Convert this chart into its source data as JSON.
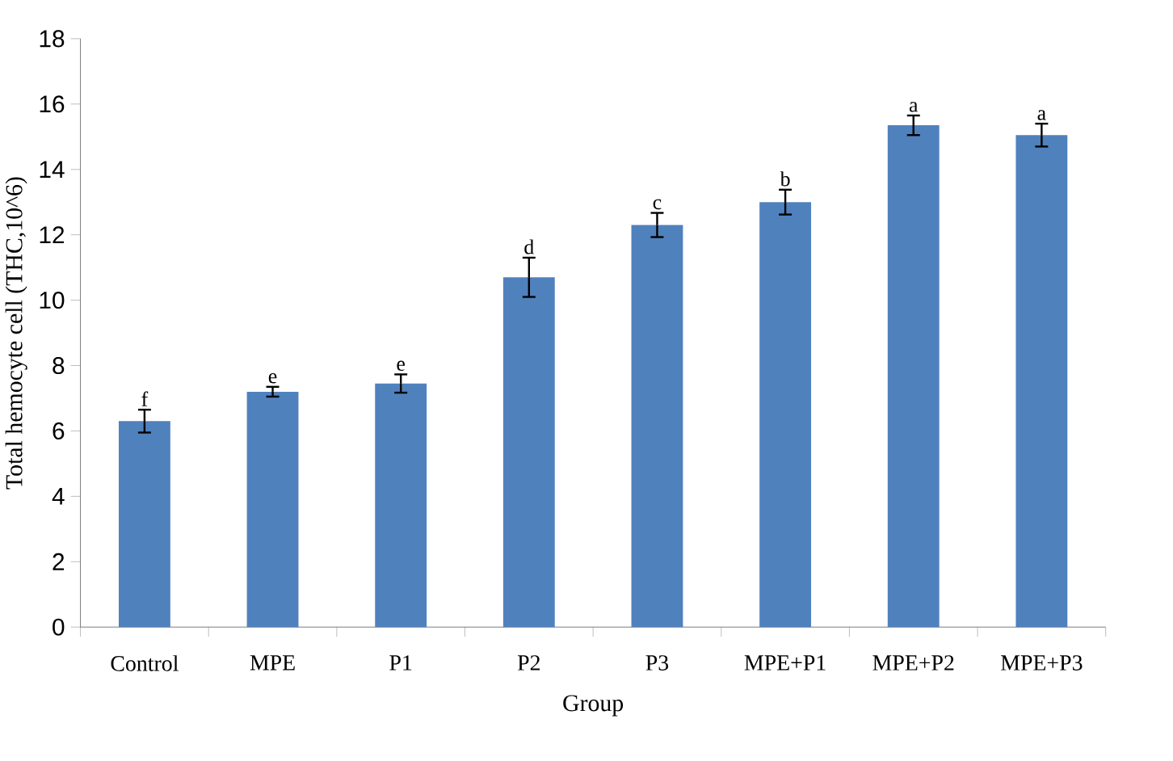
{
  "chart_data": {
    "type": "bar",
    "xlabel": "Group",
    "ylabel": "Total hemocyte cell (THC,10^6)",
    "categories": [
      "Control",
      "MPE",
      "P1",
      "P2",
      "P3",
      "MPE+P1",
      "MPE+P2",
      "MPE+P3"
    ],
    "values": [
      6.3,
      7.2,
      7.45,
      10.7,
      12.3,
      13.0,
      15.35,
      15.05
    ],
    "errors": [
      0.35,
      0.15,
      0.28,
      0.6,
      0.37,
      0.38,
      0.3,
      0.35
    ],
    "value_labels": [
      "f",
      "e",
      "e",
      "d",
      "c",
      "b",
      "a",
      "a"
    ],
    "color": "#4f81bd",
    "ylim": [
      0,
      18
    ],
    "yticks": [
      0,
      2,
      4,
      6,
      8,
      10,
      12,
      14,
      16,
      18
    ],
    "grid": false
  }
}
